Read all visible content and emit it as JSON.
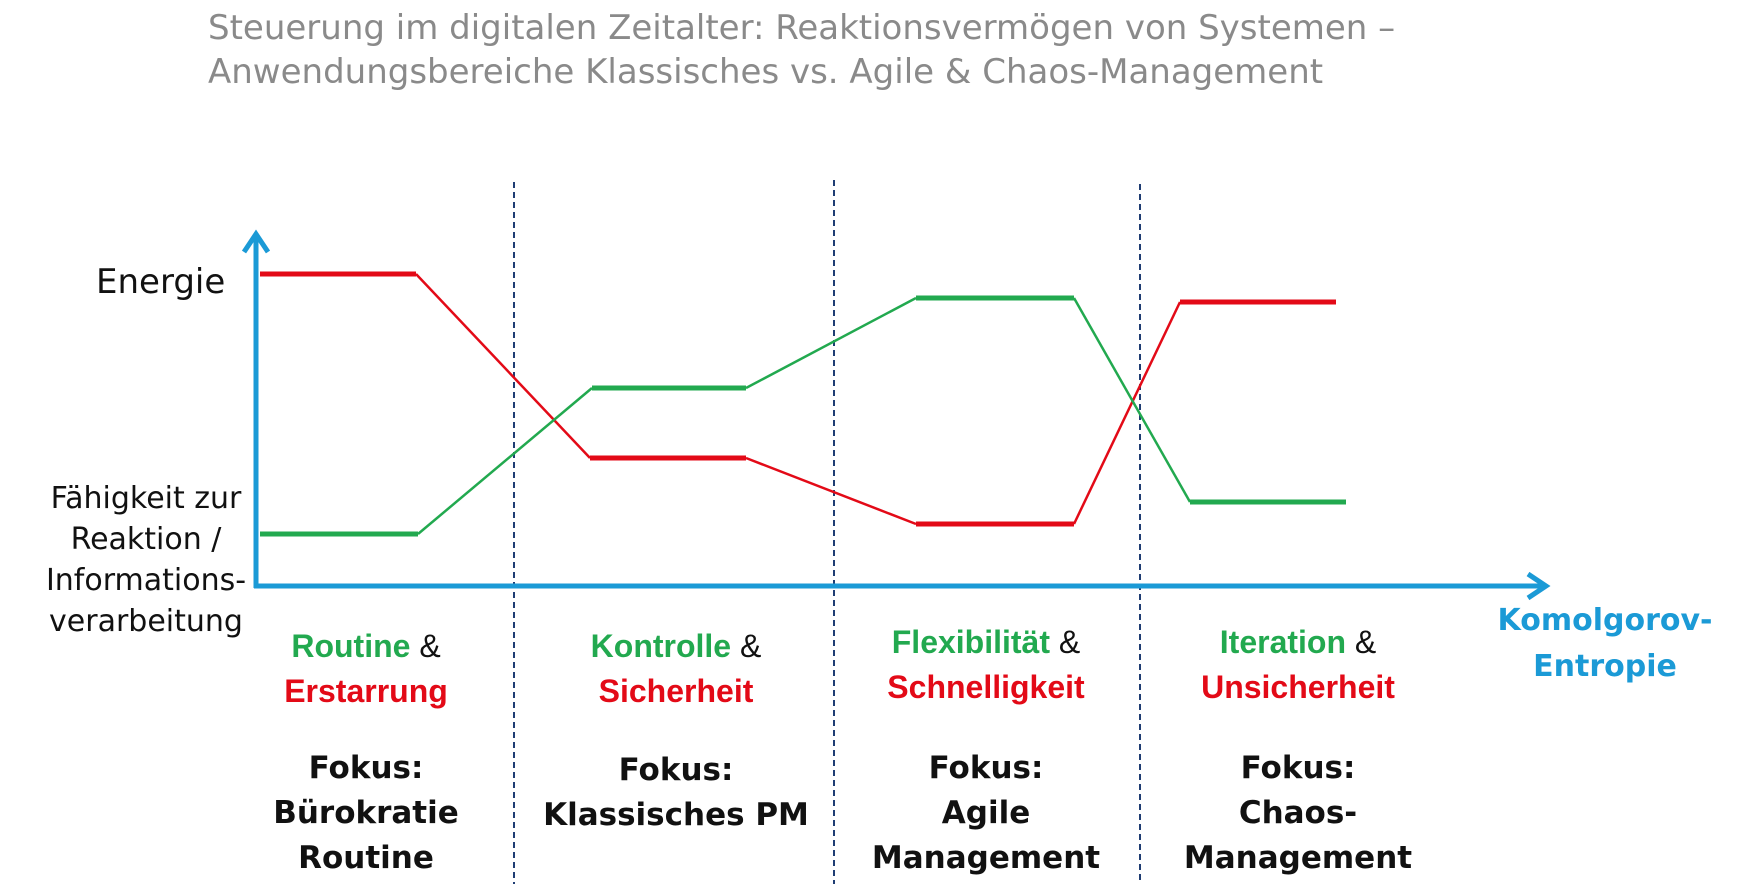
{
  "title": {
    "line1": "Steuerung im digitalen Zeitalter: Reaktionsvermögen von Systemen –",
    "line2": "Anwendungsbereiche Klassisches vs. Agile & Chaos-Management"
  },
  "axes": {
    "y_label_top": "Energie",
    "y_label_bottom": [
      "Fähigkeit zur",
      "Reaktion /",
      "Informations-",
      "verarbeitung"
    ],
    "x_label": [
      "Komolgorov-",
      "Entropie"
    ],
    "color": "#1b9ad6"
  },
  "colors": {
    "energy": "#e30a17",
    "reaction": "#22a94f",
    "divider": "#1f3d73"
  },
  "phases": [
    {
      "green": "Routine",
      "amp": "&",
      "red": "Erstarrung",
      "focus": [
        "Fokus:",
        "Bürokratie",
        "Routine"
      ]
    },
    {
      "green": "Kontrolle",
      "amp": "&",
      "red": "Sicherheit",
      "focus": [
        "Fokus:",
        "Klassisches PM"
      ]
    },
    {
      "green": "Flexibilität",
      "amp": "&",
      "red": "Schnelligkeit",
      "focus": [
        "Fokus:",
        "Agile",
        "Management"
      ]
    },
    {
      "green": "Iteration",
      "amp": "&",
      "red": "Unsicherheit",
      "focus": [
        "Fokus:",
        "Chaos-",
        "Management"
      ]
    }
  ]
}
